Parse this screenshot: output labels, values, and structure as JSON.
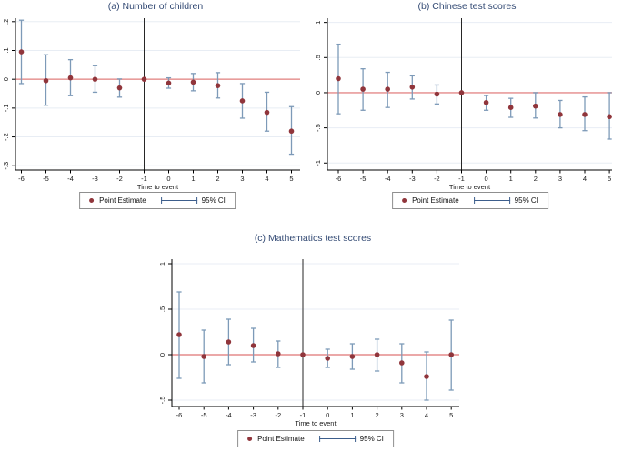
{
  "figure": {
    "background": "#ffffff"
  },
  "colors": {
    "title": "#334a74",
    "point": "#90353b",
    "ci": "#7d9ab8",
    "ci_legend": "#3d5e8c",
    "ref_line": "#e89c9b",
    "event_line": "#262626",
    "axis": "#000000",
    "grid": "#e8edf4",
    "tick_label": "#1a1a1a"
  },
  "legend": {
    "point_label": "Point Estimate",
    "ci_label": "95% CI"
  },
  "chart_data": [
    {
      "id": "a",
      "type": "scatter",
      "title": "(a) Number of children",
      "xlabel": "Time to event",
      "x": [
        -6,
        -5,
        -4,
        -3,
        -2,
        -1,
        0,
        1,
        2,
        3,
        4,
        5
      ],
      "xtick_labels": [
        "-6",
        "-5",
        "-4",
        "-3",
        "-2",
        "-1",
        "0",
        "1",
        "2",
        "3",
        "4",
        "5"
      ],
      "series": [
        {
          "name": "Point Estimate",
          "values": [
            0.095,
            -0.005,
            0.005,
            0.0,
            -0.03,
            0.0,
            -0.013,
            -0.01,
            -0.022,
            -0.075,
            -0.115,
            -0.18
          ]
        },
        {
          "name": "95% CI lower",
          "values": [
            -0.015,
            -0.09,
            -0.057,
            -0.045,
            -0.062,
            0.0,
            -0.031,
            -0.04,
            -0.065,
            -0.135,
            -0.18,
            -0.26
          ]
        },
        {
          "name": "95% CI upper",
          "values": [
            0.205,
            0.085,
            0.068,
            0.047,
            0.001,
            0.0,
            0.005,
            0.02,
            0.023,
            -0.015,
            -0.045,
            -0.095
          ]
        }
      ],
      "yticks": [
        0.2,
        0.1,
        0.0,
        -0.1,
        -0.2,
        -0.3
      ],
      "ytick_labels": [
        ".2",
        ".1",
        "0",
        "-.1",
        "-.2",
        "-.3"
      ],
      "ylim": [
        -0.315,
        0.212
      ],
      "ref_y": 0,
      "event_x": -1,
      "grid": "horizontal",
      "legend_position": "bottom-center"
    },
    {
      "id": "b",
      "type": "scatter",
      "title": "(b) Chinese test scores",
      "xlabel": "Time to event",
      "x": [
        -6,
        -5,
        -4,
        -3,
        -2,
        -1,
        0,
        1,
        2,
        3,
        4,
        5
      ],
      "xtick_labels": [
        "-6",
        "-5",
        "-4",
        "-3",
        "-2",
        "-1",
        "0",
        "1",
        "2",
        "3",
        "4",
        "5"
      ],
      "series": [
        {
          "name": "Point Estimate",
          "values": [
            0.2,
            0.05,
            0.05,
            0.08,
            -0.02,
            0.0,
            -0.14,
            -0.21,
            -0.19,
            -0.31,
            -0.31,
            -0.34
          ]
        },
        {
          "name": "95% CI lower",
          "values": [
            -0.3,
            -0.25,
            -0.21,
            -0.09,
            -0.16,
            0.0,
            -0.25,
            -0.35,
            -0.36,
            -0.5,
            -0.54,
            -0.66
          ]
        },
        {
          "name": "95% CI upper",
          "values": [
            0.69,
            0.34,
            0.29,
            0.24,
            0.11,
            0.0,
            -0.04,
            -0.08,
            0.0,
            -0.11,
            -0.06,
            0.0
          ]
        }
      ],
      "yticks": [
        1.0,
        0.5,
        0.0,
        -0.5,
        -1.0
      ],
      "ytick_labels": [
        "1",
        ".5",
        "0",
        "-.5",
        "-1"
      ],
      "ylim": [
        -1.1,
        1.06
      ],
      "ref_y": 0,
      "event_x": -1,
      "grid": "horizontal",
      "legend_position": "bottom-center"
    },
    {
      "id": "c",
      "type": "scatter",
      "title": "(c) Mathematics test scores",
      "xlabel": "Time to event",
      "x": [
        -6,
        -5,
        -4,
        -3,
        -2,
        -1,
        0,
        1,
        2,
        3,
        4,
        5
      ],
      "xtick_labels": [
        "-6",
        "-5",
        "-4",
        "-3",
        "-2",
        "-1",
        "0",
        "1",
        "2",
        "3",
        "4",
        "5"
      ],
      "series": [
        {
          "name": "Point Estimate",
          "values": [
            0.22,
            -0.02,
            0.14,
            0.1,
            0.01,
            0.0,
            -0.04,
            -0.02,
            0.0,
            -0.09,
            -0.24,
            0.0
          ]
        },
        {
          "name": "95% CI lower",
          "values": [
            -0.26,
            -0.31,
            -0.11,
            -0.08,
            -0.14,
            0.0,
            -0.14,
            -0.16,
            -0.18,
            -0.31,
            -0.5,
            -0.39
          ]
        },
        {
          "name": "95% CI upper",
          "values": [
            0.69,
            0.27,
            0.39,
            0.29,
            0.15,
            0.0,
            0.06,
            0.12,
            0.17,
            0.12,
            0.03,
            0.38
          ]
        }
      ],
      "yticks": [
        1.0,
        0.5,
        0.0,
        -0.5
      ],
      "ytick_labels": [
        "1",
        ".5",
        "0",
        "-.5"
      ],
      "ylim": [
        -0.57,
        1.05
      ],
      "ref_y": 0,
      "event_x": -1,
      "grid": "horizontal",
      "legend_position": "bottom-center"
    }
  ]
}
